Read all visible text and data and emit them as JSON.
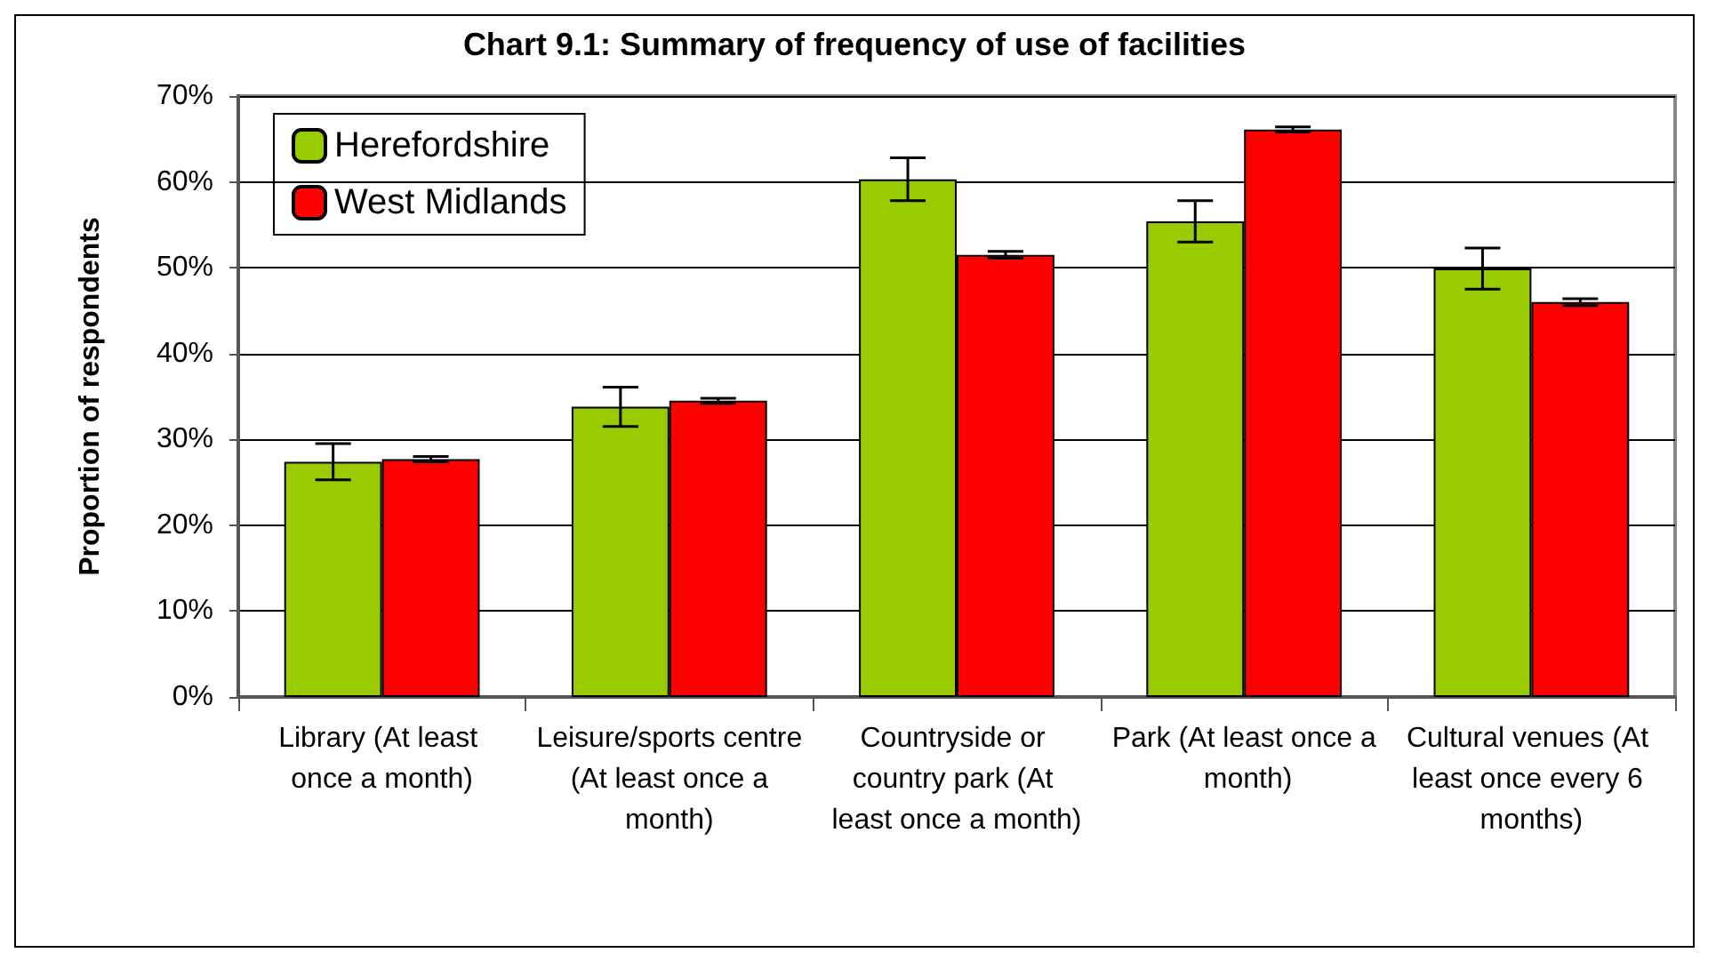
{
  "chart_data": {
    "type": "bar",
    "title": "Chart 9.1: Summary of frequency of use of facilities",
    "ylabel": "Proportion of respondents",
    "categories": [
      "Library (At least once a month)",
      "Leisure/sports centre (At least once a month)",
      "Countryside or country park (At least once a month)",
      "Park (At least once a month)",
      "Cultural venues (At least once every 6 months)"
    ],
    "series": [
      {
        "name": "Herefordshire",
        "color": "#99cc00",
        "values": [
          27.4,
          33.8,
          60.3,
          55.4,
          49.9
        ],
        "errors": [
          2.1,
          2.3,
          2.5,
          2.4,
          2.4
        ]
      },
      {
        "name": "West Midlands",
        "color": "#ff0000",
        "values": [
          27.7,
          34.5,
          51.5,
          66.1,
          46.0
        ],
        "errors": [
          0.3,
          0.3,
          0.4,
          0.3,
          0.4
        ]
      }
    ],
    "ylim": [
      0,
      70
    ],
    "yticks": [
      {
        "value": 0,
        "label": "0%"
      },
      {
        "value": 10,
        "label": "10%"
      },
      {
        "value": 20,
        "label": "20%"
      },
      {
        "value": 30,
        "label": "30%"
      },
      {
        "value": 40,
        "label": "40%"
      },
      {
        "value": 50,
        "label": "50%"
      },
      {
        "value": 60,
        "label": "60%"
      },
      {
        "value": 70,
        "label": "70%"
      }
    ],
    "grid": "y",
    "legend": "top left"
  }
}
